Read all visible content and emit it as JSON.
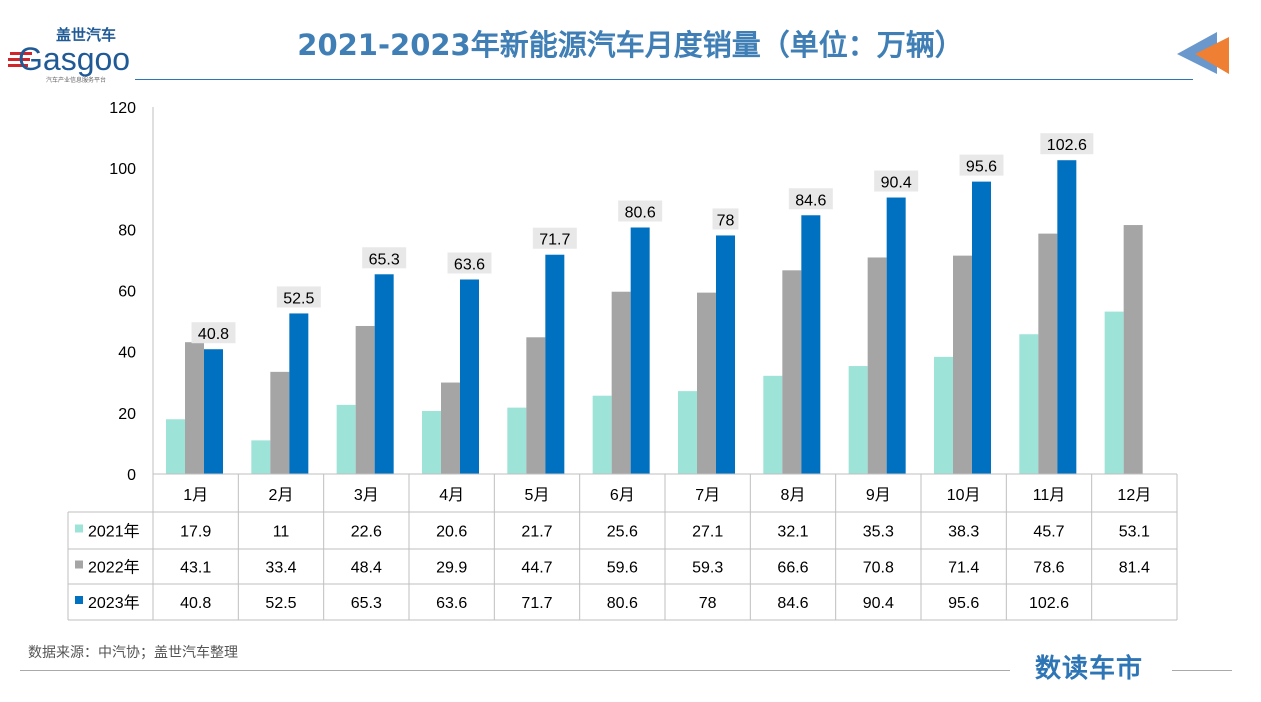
{
  "header": {
    "title": "2021-2023年新能源汽车月度销量（单位：万辆）",
    "logo_text": "盖世汽车 Gasgoo 汽车产业信息服务平台"
  },
  "footer": {
    "source": "数据来源：中汽协；盖世汽车整理",
    "brand": "数读车市"
  },
  "colors": {
    "2021": "#9ee3d8",
    "2022": "#a5a5a5",
    "2023": "#0070c0",
    "title": "#3f7fb5",
    "arrow_blue": "#6a98cc",
    "arrow_orange": "#ef7f32"
  },
  "chart_data": {
    "type": "bar",
    "title": "2021-2023年新能源汽车月度销量（单位：万辆）",
    "categories": [
      "1月",
      "2月",
      "3月",
      "4月",
      "5月",
      "6月",
      "7月",
      "8月",
      "9月",
      "10月",
      "11月",
      "12月"
    ],
    "series": [
      {
        "name": "2021年",
        "values": [
          17.9,
          11,
          22.6,
          20.6,
          21.7,
          25.6,
          27.1,
          32.1,
          35.3,
          38.3,
          45.7,
          53.1
        ]
      },
      {
        "name": "2022年",
        "values": [
          43.1,
          33.4,
          48.4,
          29.9,
          44.7,
          59.6,
          59.3,
          66.6,
          70.8,
          71.4,
          78.6,
          81.4
        ]
      },
      {
        "name": "2023年",
        "values": [
          40.8,
          52.5,
          65.3,
          63.6,
          71.7,
          80.6,
          78,
          84.6,
          90.4,
          95.6,
          102.6,
          null
        ]
      }
    ],
    "data_labels_series": "2023年",
    "yticks": [
      0,
      20,
      40,
      60,
      80,
      100,
      120
    ],
    "ylim": [
      0,
      120
    ],
    "grid": false,
    "legend": "data-table"
  }
}
